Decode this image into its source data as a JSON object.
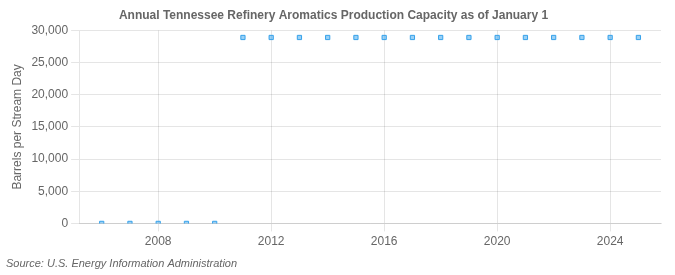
{
  "chart_data": {
    "type": "scatter",
    "title": "Annual Tennessee Refinery Aromatics Production Capacity as of January 1",
    "y_label": "Barrels per Stream Day",
    "annotation": "Source: U.S. Energy Information Administration",
    "x": [
      2006,
      2007,
      2008,
      2009,
      2010,
      2011,
      2012,
      2013,
      2014,
      2015,
      2016,
      2017,
      2018,
      2019,
      2020,
      2021,
      2022,
      2023,
      2024,
      2025
    ],
    "values": [
      0,
      0,
      0,
      0,
      0,
      28900,
      28900,
      28900,
      28900,
      28900,
      28900,
      28900,
      28900,
      28900,
      28900,
      28900,
      28900,
      28900,
      28900,
      28900
    ],
    "marker": "square",
    "xlim": [
      2005.2,
      2025.8
    ],
    "xticks": [
      2008,
      2012,
      2016,
      2020,
      2024
    ],
    "ylim": [
      0,
      30000
    ],
    "yticks": [
      0,
      {
        "value": 5000,
        "label": "5,000"
      },
      {
        "value": 10000,
        "label": "10,000"
      },
      {
        "value": 15000,
        "label": "15,000"
      },
      {
        "value": 20000,
        "label": "20,000"
      },
      {
        "value": 25000,
        "label": "25,000"
      },
      {
        "value": 30000,
        "label": "30,000"
      }
    ],
    "grid": true
  }
}
